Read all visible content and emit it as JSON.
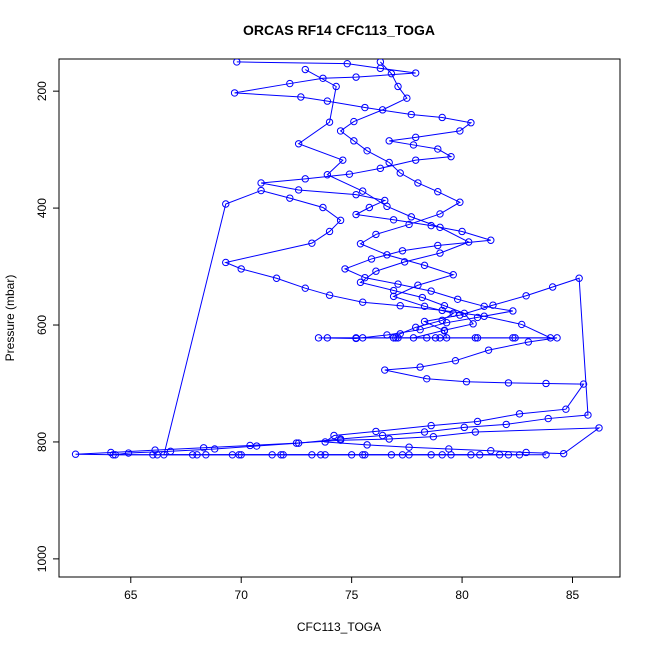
{
  "chart_data": {
    "type": "line",
    "title": "ORCAS RF14 CFC113_TOGA",
    "xlabel": "CFC113_TOGA",
    "ylabel": "Pressure (mbar)",
    "xlim": [
      61.75,
      87.15
    ],
    "ylim": [
      1031,
      145
    ],
    "y_inverted": true,
    "x_ticks": [
      65,
      70,
      75,
      80,
      85
    ],
    "y_ticks": [
      200,
      400,
      600,
      800,
      1000
    ],
    "grid": false,
    "legend": "none",
    "series": [
      {
        "color": "#0000ff",
        "marker": "circle",
        "points": [
          [
            69.8,
            150
          ],
          [
            74.8,
            153
          ],
          [
            76.3,
            161
          ],
          [
            77.9,
            169
          ],
          [
            75.2,
            176
          ],
          [
            73.7,
            178
          ],
          [
            72.2,
            187
          ],
          [
            69.7,
            203
          ],
          [
            72.7,
            210
          ],
          [
            73.9,
            217
          ],
          [
            75.6,
            228
          ],
          [
            77.7,
            240
          ],
          [
            79.1,
            245
          ],
          [
            80.4,
            254
          ],
          [
            79.9,
            268
          ],
          [
            77.9,
            279
          ],
          [
            76.7,
            285
          ],
          [
            77.8,
            292
          ],
          [
            78.9,
            299
          ],
          [
            79.5,
            312
          ],
          [
            77.9,
            318
          ],
          [
            76.3,
            332
          ],
          [
            74.9,
            342
          ],
          [
            72.9,
            350
          ],
          [
            70.9,
            357
          ],
          [
            72.6,
            369
          ],
          [
            75.2,
            377
          ],
          [
            76.5,
            387
          ],
          [
            75.8,
            399
          ],
          [
            75.2,
            411
          ],
          [
            76.9,
            420
          ],
          [
            78.6,
            430
          ],
          [
            80.0,
            440
          ],
          [
            81.3,
            455
          ],
          [
            78.9,
            464
          ],
          [
            77.3,
            473
          ],
          [
            75.9,
            487
          ],
          [
            74.7,
            504
          ],
          [
            75.6,
            519
          ],
          [
            77.1,
            530
          ],
          [
            78.6,
            542
          ],
          [
            79.8,
            556
          ],
          [
            81.0,
            568
          ],
          [
            82.3,
            576
          ],
          [
            80.7,
            587
          ],
          [
            79.3,
            596
          ],
          [
            78.1,
            608
          ],
          [
            76.6,
            617
          ],
          [
            75.2,
            623
          ],
          [
            73.5,
            622
          ],
          [
            75.5,
            622
          ],
          [
            77.1,
            622
          ],
          [
            78.8,
            622
          ],
          [
            80.6,
            622
          ],
          [
            82.3,
            622
          ],
          [
            84.3,
            622
          ],
          [
            83.0,
            629
          ],
          [
            81.2,
            643
          ],
          [
            79.7,
            661
          ],
          [
            78.1,
            672
          ],
          [
            76.5,
            677
          ],
          [
            78.4,
            692
          ],
          [
            80.2,
            697
          ],
          [
            82.1,
            699
          ],
          [
            83.8,
            700
          ],
          [
            85.5,
            701
          ],
          [
            84.7,
            744
          ],
          [
            82.6,
            752
          ],
          [
            80.7,
            765
          ],
          [
            78.6,
            772
          ],
          [
            76.1,
            782
          ],
          [
            74.2,
            789
          ],
          [
            73.8,
            800
          ],
          [
            75.7,
            805
          ],
          [
            77.6,
            809
          ],
          [
            79.4,
            812
          ],
          [
            81.3,
            815
          ],
          [
            82.9,
            818
          ],
          [
            84.6,
            820
          ],
          [
            86.2,
            776
          ],
          [
            80.6,
            783
          ],
          [
            78.7,
            791
          ],
          [
            76.7,
            795
          ],
          [
            74.5,
            797
          ],
          [
            72.5,
            802
          ],
          [
            70.4,
            806
          ],
          [
            68.3,
            810
          ],
          [
            66.1,
            814
          ],
          [
            64.1,
            818
          ],
          [
            62.5,
            821
          ],
          [
            64.3,
            822
          ],
          [
            66.0,
            822
          ],
          [
            67.8,
            822
          ],
          [
            69.6,
            822
          ],
          [
            71.4,
            822
          ],
          [
            73.2,
            822
          ],
          [
            75.0,
            822
          ],
          [
            76.8,
            822
          ],
          [
            78.6,
            822
          ],
          [
            80.4,
            822
          ],
          [
            82.1,
            822
          ],
          [
            83.8,
            822
          ]
        ]
      },
      {
        "color": "#0000ff",
        "marker": "circle",
        "points": [
          [
            76.3,
            150
          ],
          [
            76.8,
            170
          ],
          [
            77.1,
            192
          ],
          [
            77.5,
            212
          ],
          [
            76.4,
            232
          ],
          [
            75.1,
            252
          ],
          [
            74.5,
            268
          ],
          [
            75.1,
            285
          ],
          [
            75.7,
            302
          ],
          [
            76.7,
            322
          ],
          [
            77.2,
            340
          ],
          [
            78.0,
            357
          ],
          [
            78.9,
            372
          ],
          [
            79.9,
            390
          ],
          [
            79.0,
            410
          ],
          [
            77.6,
            428
          ],
          [
            76.1,
            445
          ],
          [
            75.4,
            461
          ],
          [
            76.6,
            480
          ],
          [
            78.3,
            498
          ],
          [
            79.6,
            514
          ],
          [
            78.0,
            532
          ],
          [
            76.9,
            551
          ],
          [
            78.3,
            568
          ],
          [
            79.6,
            580
          ],
          [
            79.1,
            592
          ],
          [
            77.9,
            604
          ],
          [
            77.2,
            615
          ],
          [
            77.0,
            622
          ],
          [
            78.4,
            622
          ],
          [
            79.3,
            622
          ],
          [
            79.2,
            610
          ],
          [
            78.3,
            594
          ],
          [
            79.9,
            583
          ],
          [
            81.4,
            566
          ],
          [
            82.9,
            550
          ],
          [
            84.1,
            535
          ],
          [
            85.3,
            520
          ],
          [
            85.7,
            754
          ],
          [
            83.9,
            760
          ],
          [
            82.0,
            770
          ],
          [
            80.1,
            775
          ],
          [
            78.3,
            783
          ],
          [
            76.4,
            789
          ],
          [
            74.5,
            795
          ],
          [
            72.6,
            802
          ],
          [
            70.7,
            807
          ],
          [
            68.8,
            812
          ],
          [
            66.8,
            816
          ],
          [
            64.9,
            819
          ],
          [
            64.2,
            822
          ],
          [
            66.2,
            822
          ],
          [
            68.0,
            822
          ],
          [
            69.9,
            822
          ],
          [
            71.9,
            822
          ],
          [
            73.6,
            822
          ],
          [
            75.5,
            822
          ],
          [
            77.3,
            822
          ],
          [
            79.1,
            822
          ],
          [
            80.8,
            822
          ],
          [
            82.6,
            822
          ]
        ]
      },
      {
        "color": "#0000ff",
        "marker": "circle",
        "points": [
          [
            72.9,
            163
          ],
          [
            74.3,
            192
          ],
          [
            74.0,
            253
          ],
          [
            72.6,
            290
          ],
          [
            74.6,
            318
          ],
          [
            73.9,
            343
          ],
          [
            75.5,
            371
          ],
          [
            76.6,
            397
          ],
          [
            77.7,
            415
          ],
          [
            79.0,
            433
          ],
          [
            80.3,
            458
          ],
          [
            79.0,
            477
          ],
          [
            77.4,
            492
          ],
          [
            76.1,
            508
          ],
          [
            75.4,
            527
          ],
          [
            76.9,
            541
          ],
          [
            78.2,
            553
          ],
          [
            79.2,
            567
          ],
          [
            80.1,
            580
          ],
          [
            80.5,
            598
          ],
          [
            79.2,
            609
          ],
          [
            77.8,
            622
          ],
          [
            75.2,
            622
          ],
          [
            73.9,
            622
          ],
          [
            76.9,
            622
          ],
          [
            79.0,
            622
          ],
          [
            80.7,
            622
          ],
          [
            82.4,
            622
          ],
          [
            84.0,
            622
          ],
          [
            82.7,
            599
          ],
          [
            81.0,
            585
          ],
          [
            79.1,
            575
          ],
          [
            77.2,
            567
          ],
          [
            75.5,
            561
          ],
          [
            74.0,
            549
          ],
          [
            72.9,
            537
          ],
          [
            71.6,
            520
          ],
          [
            70.0,
            504
          ],
          [
            69.3,
            493
          ],
          [
            73.2,
            460
          ],
          [
            74.0,
            440
          ],
          [
            74.5,
            421
          ],
          [
            73.7,
            399
          ],
          [
            72.2,
            383
          ],
          [
            70.9,
            370
          ],
          [
            69.3,
            393
          ],
          [
            66.5,
            822
          ],
          [
            68.4,
            822
          ],
          [
            70.0,
            822
          ],
          [
            71.8,
            822
          ],
          [
            73.8,
            822
          ],
          [
            75.6,
            822
          ],
          [
            77.6,
            822
          ],
          [
            79.5,
            822
          ],
          [
            81.7,
            822
          ]
        ]
      }
    ]
  }
}
